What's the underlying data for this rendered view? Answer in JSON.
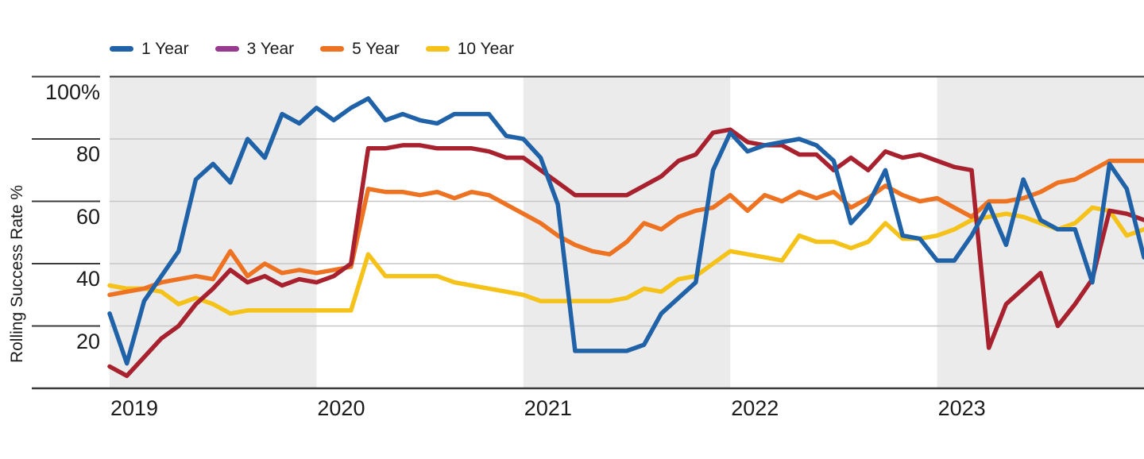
{
  "chart_data": {
    "type": "line",
    "ylabel": "Rolling Success Rate %",
    "xlabel": "",
    "ylim": [
      0,
      100
    ],
    "y_ticks": [
      100,
      80,
      60,
      40,
      20
    ],
    "y_tick_labels": [
      "100%",
      "80",
      "60",
      "40",
      "20"
    ],
    "x_tick_labels": [
      "2019",
      "2020",
      "2021",
      "2022",
      "2023"
    ],
    "grid": "horizontal",
    "legend_position": "top-left",
    "year_bands": [
      {
        "label": "2019",
        "shaded": true
      },
      {
        "label": "2020",
        "shaded": false
      },
      {
        "label": "2021",
        "shaded": true
      },
      {
        "label": "2022",
        "shaded": false
      },
      {
        "label": "2023",
        "shaded": true
      }
    ],
    "x_months": [
      "2019-01",
      "2019-02",
      "2019-03",
      "2019-04",
      "2019-05",
      "2019-06",
      "2019-07",
      "2019-08",
      "2019-09",
      "2019-10",
      "2019-11",
      "2019-12",
      "2020-01",
      "2020-02",
      "2020-03",
      "2020-04",
      "2020-05",
      "2020-06",
      "2020-07",
      "2020-08",
      "2020-09",
      "2020-10",
      "2020-11",
      "2020-12",
      "2021-01",
      "2021-02",
      "2021-03",
      "2021-04",
      "2021-05",
      "2021-06",
      "2021-07",
      "2021-08",
      "2021-09",
      "2021-10",
      "2021-11",
      "2021-12",
      "2022-01",
      "2022-02",
      "2022-03",
      "2022-04",
      "2022-05",
      "2022-06",
      "2022-07",
      "2022-08",
      "2022-09",
      "2022-10",
      "2022-11",
      "2022-12",
      "2023-01",
      "2023-02",
      "2023-03",
      "2023-04",
      "2023-05",
      "2023-06",
      "2023-07",
      "2023-08",
      "2023-09",
      "2023-10",
      "2023-11",
      "2023-12",
      "2024-01"
    ],
    "series": [
      {
        "name": "1 Year",
        "line_color": "#2062A8",
        "swatch_color": "#2062A8",
        "values": [
          24,
          8,
          28,
          36,
          44,
          67,
          72,
          66,
          80,
          74,
          88,
          85,
          90,
          86,
          90,
          93,
          86,
          88,
          86,
          85,
          88,
          88,
          88,
          81,
          80,
          74,
          59,
          12,
          12,
          12,
          12,
          14,
          24,
          29,
          34,
          70,
          82,
          76,
          78,
          79,
          80,
          78,
          73,
          53,
          59,
          70,
          49,
          48,
          41,
          41,
          49,
          59,
          46,
          67,
          54,
          51,
          51,
          34,
          72,
          64,
          42
        ]
      },
      {
        "name": "3 Year",
        "line_color": "#A8212E",
        "swatch_color": "#97398E",
        "values": [
          7,
          4,
          10,
          16,
          20,
          27,
          32,
          38,
          34,
          36,
          33,
          35,
          34,
          36,
          40,
          77,
          77,
          78,
          78,
          77,
          77,
          77,
          76,
          74,
          74,
          70,
          66,
          62,
          62,
          62,
          62,
          65,
          68,
          73,
          75,
          82,
          83,
          79,
          78,
          78,
          75,
          75,
          70,
          74,
          70,
          76,
          74,
          75,
          73,
          71,
          70,
          13,
          27,
          32,
          37,
          20,
          27,
          35,
          57,
          56,
          54
        ]
      },
      {
        "name": "5 Year",
        "line_color": "#ED7322",
        "swatch_color": "#ED7322",
        "values": [
          30,
          31,
          32,
          34,
          35,
          36,
          35,
          44,
          36,
          40,
          37,
          38,
          37,
          38,
          39,
          64,
          63,
          63,
          62,
          63,
          61,
          63,
          62,
          59,
          56,
          53,
          49,
          46,
          44,
          43,
          47,
          53,
          51,
          55,
          57,
          58,
          62,
          57,
          62,
          60,
          63,
          61,
          63,
          58,
          61,
          65,
          62,
          60,
          61,
          58,
          55,
          60,
          60,
          61,
          63,
          66,
          67,
          70,
          73,
          73,
          73
        ]
      },
      {
        "name": "10 Year",
        "line_color": "#F4C218",
        "swatch_color": "#F4C218",
        "values": [
          33,
          32,
          32,
          31,
          27,
          29,
          27,
          24,
          25,
          25,
          25,
          25,
          25,
          25,
          25,
          43,
          36,
          36,
          36,
          36,
          34,
          33,
          32,
          31,
          30,
          28,
          28,
          28,
          28,
          28,
          29,
          32,
          31,
          35,
          36,
          40,
          44,
          43,
          42,
          41,
          49,
          47,
          47,
          45,
          47,
          53,
          48,
          48,
          49,
          51,
          54,
          55,
          56,
          55,
          53,
          51,
          53,
          58,
          57,
          49,
          51
        ]
      }
    ],
    "style": {
      "band_gray": "#EBEBEB",
      "gridline_gray": "#C6C6C6",
      "axis_dark": "#3A3A3A",
      "line_width": 5.5
    }
  }
}
